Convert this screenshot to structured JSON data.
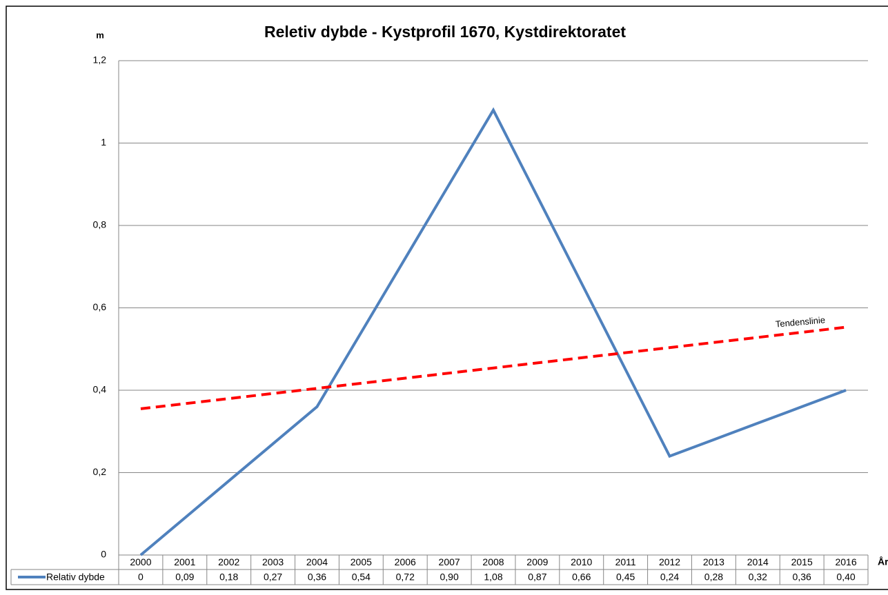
{
  "chart_data": {
    "type": "line",
    "title": "Reletiv dybde - Kystprofil 1670, Kystdirektoratet",
    "y_label": "m",
    "x_label": "År",
    "categories": [
      "2000",
      "2001",
      "2002",
      "2003",
      "2004",
      "2005",
      "2006",
      "2007",
      "2008",
      "2009",
      "2010",
      "2011",
      "2012",
      "2013",
      "2014",
      "2015",
      "2016"
    ],
    "series": [
      {
        "name": "Relativ dybde",
        "color": "#4f81bd",
        "values": [
          0,
          0.09,
          0.18,
          0.27,
          0.36,
          0.54,
          0.72,
          0.9,
          1.08,
          0.87,
          0.66,
          0.45,
          0.24,
          0.28,
          0.32,
          0.36,
          0.4
        ],
        "value_labels": [
          "0",
          "0,09",
          "0,18",
          "0,27",
          "0,36",
          "0,54",
          "0,72",
          "0,90",
          "1,08",
          "0,87",
          "0,66",
          "0,45",
          "0,24",
          "0,28",
          "0,32",
          "0,36",
          "0,40"
        ]
      }
    ],
    "trendline": {
      "label": "Tendenslinie",
      "color": "#ff0000",
      "values": [
        0.355,
        0.553
      ]
    },
    "ylim": [
      0,
      1.2
    ],
    "yticks": [
      0,
      {
        "value": 0.2,
        "label": "0,2"
      },
      {
        "value": 0.4,
        "label": "0,4"
      },
      {
        "value": 0.6,
        "label": "0,6"
      },
      {
        "value": 0.8,
        "label": "0,8"
      },
      1,
      {
        "value": 1.2,
        "label": "1,2"
      }
    ],
    "grid": true
  }
}
